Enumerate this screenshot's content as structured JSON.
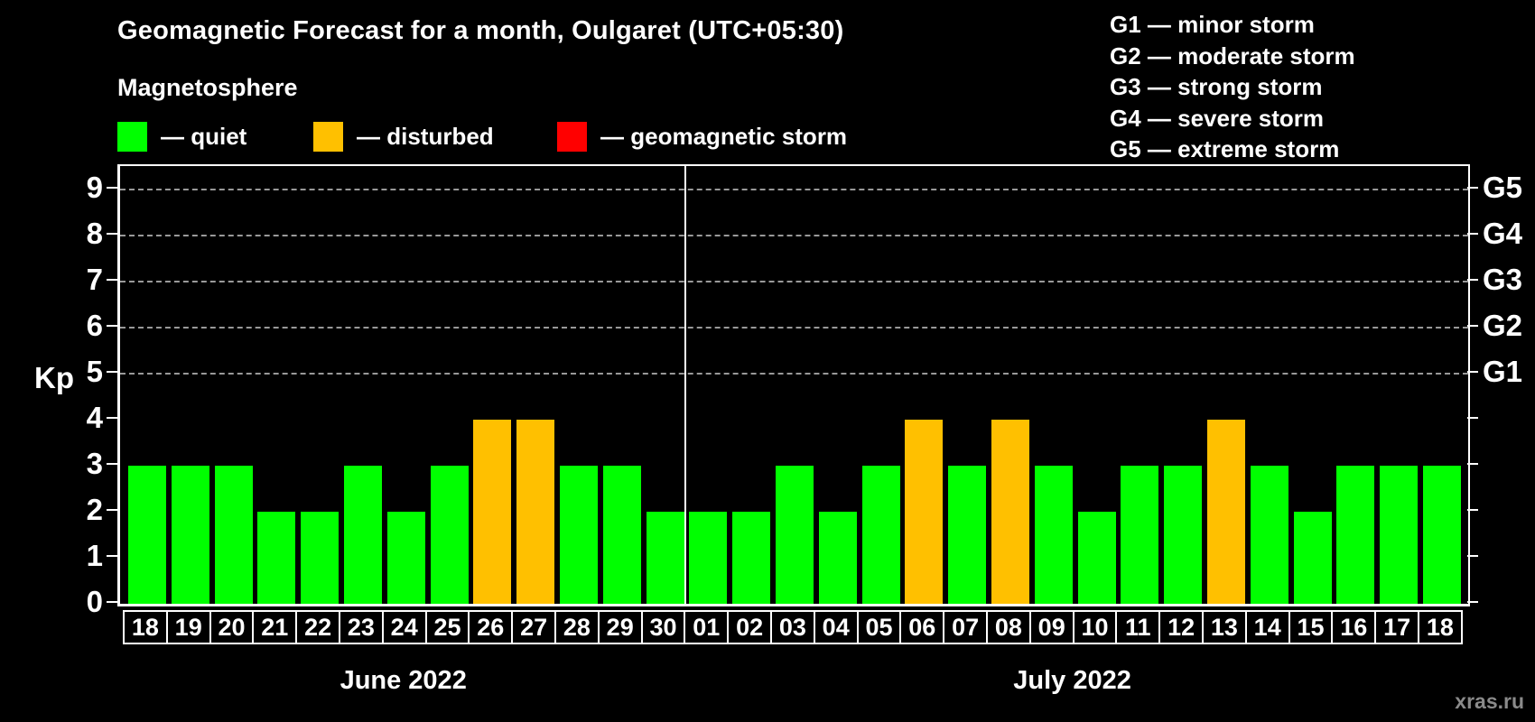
{
  "title": "Geomagnetic Forecast for a month, Oulgaret (UTC+05:30)",
  "subtitle": "Magnetosphere",
  "legend": {
    "quiet": {
      "label": "— quiet",
      "color": "#00ff00"
    },
    "disturbed": {
      "label": "— disturbed",
      "color": "#ffc000"
    },
    "storm": {
      "label": "— geomagnetic storm",
      "color": "#ff0000"
    }
  },
  "g_legend": [
    "G1 — minor storm",
    "G2 — moderate storm",
    "G3 — strong storm",
    "G4 — severe storm",
    "G5 — extreme storm"
  ],
  "watermark": "xras.ru",
  "chart_data": {
    "type": "bar",
    "title": "Geomagnetic Forecast for a month, Oulgaret (UTC+05:30)",
    "ylabel": "Kp",
    "ylim": [
      0,
      9.5
    ],
    "yticks": [
      0,
      1,
      2,
      3,
      4,
      5,
      6,
      7,
      8,
      9
    ],
    "gridlines_kp": [
      5,
      6,
      7,
      8,
      9
    ],
    "right_axis_labels": [
      {
        "label": "G1",
        "kp": 5
      },
      {
        "label": "G2",
        "kp": 6
      },
      {
        "label": "G3",
        "kp": 7
      },
      {
        "label": "G4",
        "kp": 8
      },
      {
        "label": "G5",
        "kp": 9
      }
    ],
    "status_colors": {
      "quiet": "#00ff00",
      "disturbed": "#ffc000",
      "storm": "#ff0000"
    },
    "legend_position": "top-left",
    "grid": "dashed horizontal at Kp 5-9 only",
    "series": [
      {
        "month": "June 2022",
        "points": [
          {
            "day": "18",
            "kp": 3,
            "status": "quiet"
          },
          {
            "day": "19",
            "kp": 3,
            "status": "quiet"
          },
          {
            "day": "20",
            "kp": 3,
            "status": "quiet"
          },
          {
            "day": "21",
            "kp": 2,
            "status": "quiet"
          },
          {
            "day": "22",
            "kp": 2,
            "status": "quiet"
          },
          {
            "day": "23",
            "kp": 3,
            "status": "quiet"
          },
          {
            "day": "24",
            "kp": 2,
            "status": "quiet"
          },
          {
            "day": "25",
            "kp": 3,
            "status": "quiet"
          },
          {
            "day": "26",
            "kp": 4,
            "status": "disturbed"
          },
          {
            "day": "27",
            "kp": 4,
            "status": "disturbed"
          },
          {
            "day": "28",
            "kp": 3,
            "status": "quiet"
          },
          {
            "day": "29",
            "kp": 3,
            "status": "quiet"
          },
          {
            "day": "30",
            "kp": 2,
            "status": "quiet"
          }
        ]
      },
      {
        "month": "July 2022",
        "points": [
          {
            "day": "01",
            "kp": 2,
            "status": "quiet"
          },
          {
            "day": "02",
            "kp": 2,
            "status": "quiet"
          },
          {
            "day": "03",
            "kp": 3,
            "status": "quiet"
          },
          {
            "day": "04",
            "kp": 2,
            "status": "quiet"
          },
          {
            "day": "05",
            "kp": 3,
            "status": "quiet"
          },
          {
            "day": "06",
            "kp": 4,
            "status": "disturbed"
          },
          {
            "day": "07",
            "kp": 3,
            "status": "quiet"
          },
          {
            "day": "08",
            "kp": 4,
            "status": "disturbed"
          },
          {
            "day": "09",
            "kp": 3,
            "status": "quiet"
          },
          {
            "day": "10",
            "kp": 2,
            "status": "quiet"
          },
          {
            "day": "11",
            "kp": 3,
            "status": "quiet"
          },
          {
            "day": "12",
            "kp": 3,
            "status": "quiet"
          },
          {
            "day": "13",
            "kp": 4,
            "status": "disturbed"
          },
          {
            "day": "14",
            "kp": 3,
            "status": "quiet"
          },
          {
            "day": "15",
            "kp": 2,
            "status": "quiet"
          },
          {
            "day": "16",
            "kp": 3,
            "status": "quiet"
          },
          {
            "day": "17",
            "kp": 3,
            "status": "quiet"
          },
          {
            "day": "18",
            "kp": 3,
            "status": "quiet"
          }
        ]
      }
    ]
  }
}
